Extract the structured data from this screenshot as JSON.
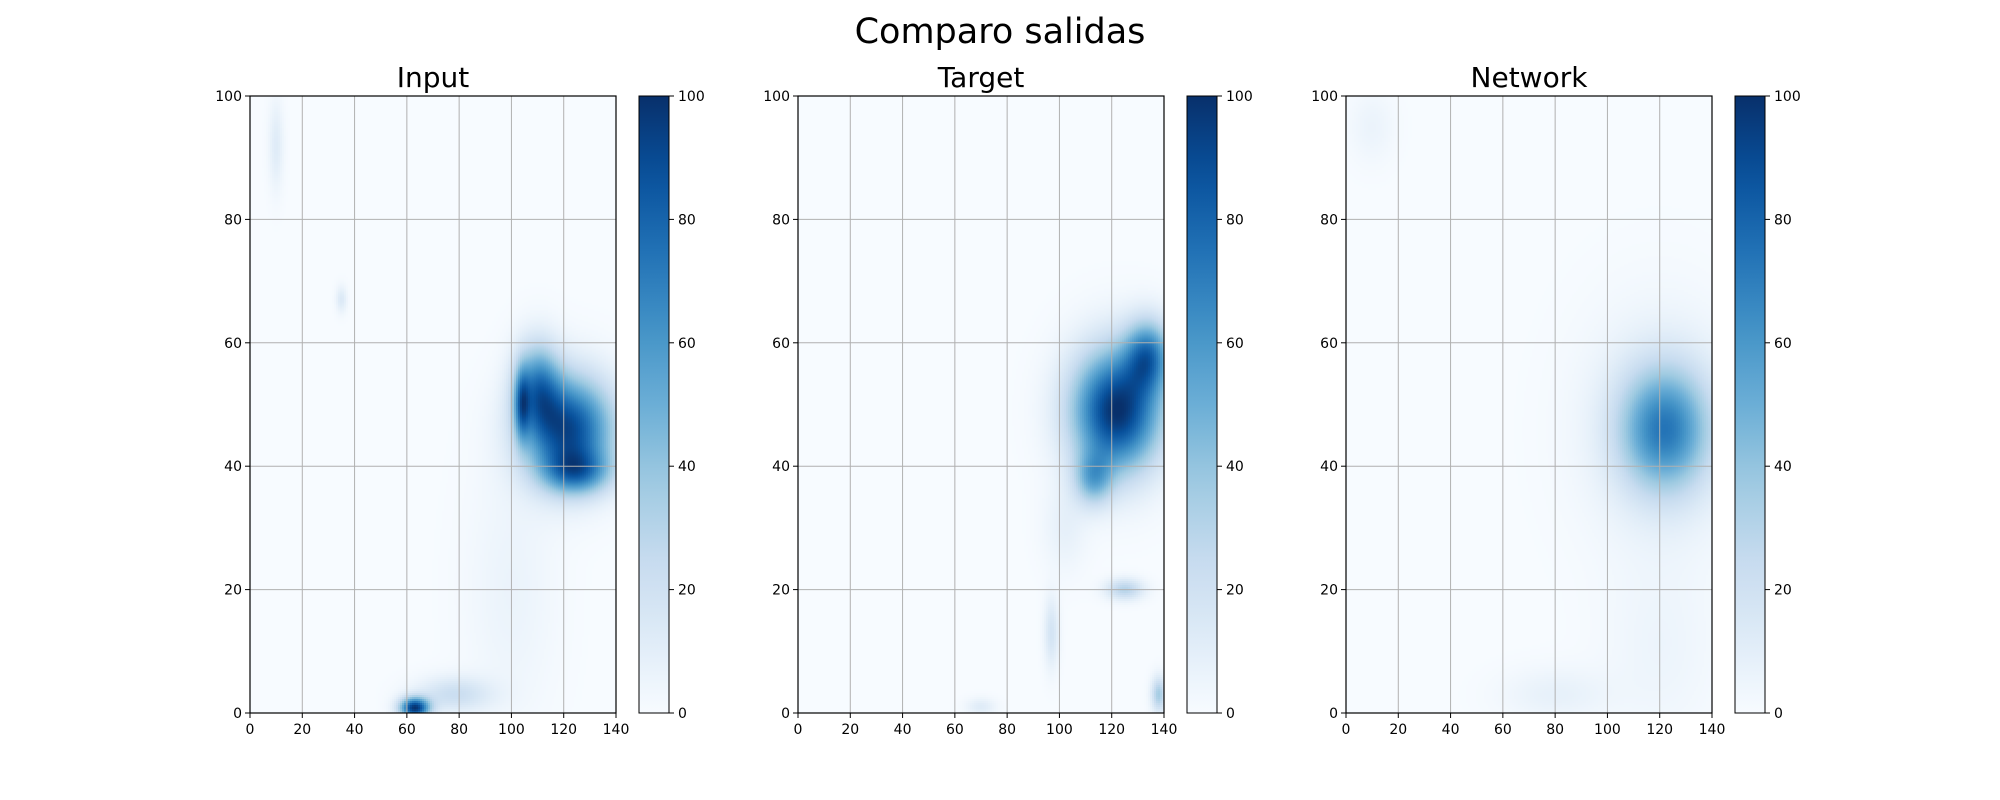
{
  "figure": {
    "title": "Comparo salidas"
  },
  "chart_data": [
    {
      "type": "heatmap",
      "title": "Input",
      "colormap": "Blues",
      "xlim": [
        0,
        140
      ],
      "ylim": [
        0,
        100
      ],
      "xticks": [
        0,
        20,
        40,
        60,
        80,
        100,
        120,
        140
      ],
      "yticks": [
        0,
        20,
        40,
        60,
        80,
        100
      ],
      "colorbar": {
        "range": [
          0,
          100
        ],
        "ticks": [
          0,
          20,
          40,
          60,
          80,
          100
        ]
      },
      "grid": true,
      "features": [
        {
          "x": 122,
          "y": 46,
          "sx": 12,
          "sy": 6,
          "value": 90
        },
        {
          "x": 110,
          "y": 53,
          "sx": 6,
          "sy": 5,
          "value": 55
        },
        {
          "x": 125,
          "y": 39,
          "sx": 9,
          "sy": 2.5,
          "value": 48
        },
        {
          "x": 104,
          "y": 50,
          "sx": 2,
          "sy": 4,
          "value": 45
        },
        {
          "x": 63,
          "y": 0.8,
          "sx": 4,
          "sy": 1.2,
          "value": 95
        },
        {
          "x": 78,
          "y": 3,
          "sx": 10,
          "sy": 2,
          "value": 22
        },
        {
          "x": 10,
          "y": 92,
          "sx": 2,
          "sy": 5,
          "value": 12
        },
        {
          "x": 35,
          "y": 67,
          "sx": 1.5,
          "sy": 1.5,
          "value": 14
        },
        {
          "x": 100,
          "y": 20,
          "sx": 12,
          "sy": 15,
          "value": 6
        }
      ]
    },
    {
      "type": "heatmap",
      "title": "Target",
      "colormap": "Blues",
      "xlim": [
        0,
        140
      ],
      "ylim": [
        0,
        100
      ],
      "xticks": [
        0,
        20,
        40,
        60,
        80,
        100,
        120,
        140
      ],
      "yticks": [
        0,
        20,
        40,
        60,
        80,
        100
      ],
      "colorbar": {
        "range": [
          0,
          100
        ],
        "ticks": [
          0,
          20,
          40,
          60,
          80,
          100
        ]
      },
      "grid": true,
      "features": [
        {
          "x": 122,
          "y": 49,
          "sx": 12,
          "sy": 7,
          "value": 100
        },
        {
          "x": 134,
          "y": 58,
          "sx": 6,
          "sy": 4,
          "value": 60
        },
        {
          "x": 113,
          "y": 38,
          "sx": 5,
          "sy": 3,
          "value": 40
        },
        {
          "x": 125,
          "y": 20,
          "sx": 5,
          "sy": 1.2,
          "value": 30
        },
        {
          "x": 97,
          "y": 13,
          "sx": 2,
          "sy": 4,
          "value": 18
        },
        {
          "x": 138,
          "y": 3,
          "sx": 2,
          "sy": 2,
          "value": 35
        },
        {
          "x": 70,
          "y": 1,
          "sx": 4,
          "sy": 1,
          "value": 12
        },
        {
          "x": 102,
          "y": 30,
          "sx": 6,
          "sy": 5,
          "value": 8
        }
      ]
    },
    {
      "type": "heatmap",
      "title": "Network",
      "colormap": "Blues",
      "xlim": [
        0,
        140
      ],
      "ylim": [
        0,
        100
      ],
      "xticks": [
        0,
        20,
        40,
        60,
        80,
        100,
        120,
        140
      ],
      "yticks": [
        0,
        20,
        40,
        60,
        80,
        100
      ],
      "colorbar": {
        "range": [
          0,
          100
        ],
        "ticks": [
          0,
          20,
          40,
          60,
          80,
          100
        ]
      },
      "grid": true,
      "features": [
        {
          "x": 122,
          "y": 46,
          "sx": 12,
          "sy": 7,
          "value": 62
        },
        {
          "x": 120,
          "y": 46,
          "sx": 20,
          "sy": 13,
          "value": 12
        },
        {
          "x": 80,
          "y": 3,
          "sx": 14,
          "sy": 3,
          "value": 8
        },
        {
          "x": 120,
          "y": 10,
          "sx": 15,
          "sy": 10,
          "value": 5
        },
        {
          "x": 10,
          "y": 95,
          "sx": 6,
          "sy": 4,
          "value": 6
        }
      ]
    }
  ]
}
